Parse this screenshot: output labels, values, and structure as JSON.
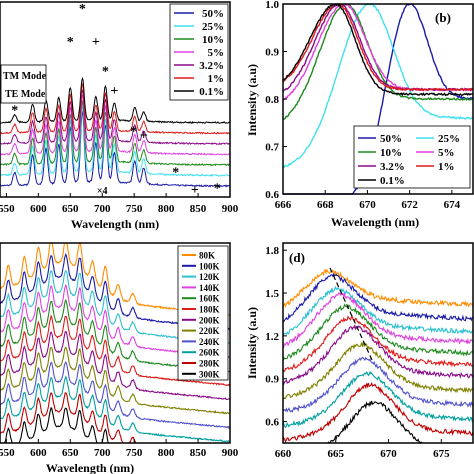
{
  "chart_data": [
    {
      "id": "a",
      "type": "line",
      "panel_label": "",
      "xlabel": "Wavelength (nm)",
      "ylabel": "",
      "xlim": [
        540,
        900
      ],
      "ylim": [
        0,
        1
      ],
      "x_ticks": [
        "550",
        "600",
        "650",
        "700",
        "750",
        "800",
        "850",
        "900"
      ],
      "x_tick_values": [
        550,
        600,
        650,
        700,
        750,
        800,
        850,
        900
      ],
      "legend_position": "top-right",
      "series": [
        {
          "name": "50%",
          "color": "#1a1aa8",
          "offset": 0.1
        },
        {
          "name": "25%",
          "color": "#40e0f0",
          "offset": 0.21
        },
        {
          "name": "10%",
          "color": "#1e8a1e",
          "offset": 0.32
        },
        {
          "name": "5%",
          "color": "#e040e0",
          "offset": 0.43
        },
        {
          "name": "3.2%",
          "color": "#8a0a8a",
          "offset": 0.54
        },
        {
          "name": "1%",
          "color": "#e01a1a",
          "offset": 0.65
        },
        {
          "name": "0.1%",
          "color": "#000000",
          "offset": 0.76
        }
      ],
      "peaks": [
        {
          "x": 563,
          "h": 0.18
        },
        {
          "x": 591,
          "h": 0.42
        },
        {
          "x": 612,
          "h": 0.5
        },
        {
          "x": 632,
          "h": 0.55
        },
        {
          "x": 650,
          "h": 0.78
        },
        {
          "x": 669,
          "h": 1.0
        },
        {
          "x": 690,
          "h": 0.55
        },
        {
          "x": 705,
          "h": 0.8
        },
        {
          "x": 719,
          "h": 0.42
        },
        {
          "x": 751,
          "h": 0.32
        },
        {
          "x": 765,
          "h": 0.22
        }
      ],
      "annotations": [
        {
          "text": "*",
          "x": 563,
          "y": 0.45
        },
        {
          "text": "*",
          "x": 591,
          "y": 0.64
        },
        {
          "text": "*",
          "x": 650,
          "y": 0.8
        },
        {
          "text": "*",
          "x": 669,
          "y": 0.97
        },
        {
          "text": "+",
          "x": 690,
          "y": 0.8
        },
        {
          "text": "*",
          "x": 705,
          "y": 0.65
        },
        {
          "text": "+",
          "x": 719,
          "y": 0.55
        },
        {
          "text": "*",
          "x": 749,
          "y": 0.34
        },
        {
          "text": "+",
          "x": 765,
          "y": 0.32
        },
        {
          "text": "*",
          "x": 815,
          "y": 0.13
        },
        {
          "text": "+",
          "x": 845,
          "y": 0.04
        },
        {
          "text": "*",
          "x": 880,
          "y": 0.05
        },
        {
          "text": "×4",
          "x": 700,
          "y": 0.04
        }
      ],
      "mode_labels": [
        "TM Mode",
        "TE Mode"
      ]
    },
    {
      "id": "b",
      "type": "line",
      "panel_label": "(b)",
      "xlabel": "Wavelength (nm)",
      "ylabel": "Intensity (a.u)",
      "xlim": [
        666,
        675
      ],
      "ylim": [
        0.6,
        1.0
      ],
      "x_ticks": [
        "666",
        "668",
        "670",
        "672",
        "674"
      ],
      "x_tick_values": [
        666,
        668,
        670,
        672,
        674
      ],
      "y_ticks": [
        "0.6",
        "0.7",
        "0.8",
        "0.9",
        "1.0"
      ],
      "y_tick_values": [
        0.6,
        0.7,
        0.8,
        0.9,
        1.0
      ],
      "legend_position": "bottom-right",
      "series": [
        {
          "name": "50%",
          "color": "#1a1aa8",
          "peak": 672.0,
          "width": 1.2,
          "base": 0.58,
          "tail": 0.8
        },
        {
          "name": "25%",
          "color": "#40e0f0",
          "peak": 670.1,
          "width": 1.6,
          "base": 0.65,
          "tail": 0.76
        },
        {
          "name": "10%",
          "color": "#1e8a1e",
          "peak": 669.0,
          "width": 1.4,
          "base": 0.74,
          "tail": 0.8
        },
        {
          "name": "5%",
          "color": "#e040e0",
          "peak": 668.9,
          "width": 1.4,
          "base": 0.78,
          "tail": 0.82
        },
        {
          "name": "3.2%",
          "color": "#8a0a8a",
          "peak": 668.7,
          "width": 1.3,
          "base": 0.8,
          "tail": 0.82
        },
        {
          "name": "1%",
          "color": "#e01a1a",
          "peak": 668.6,
          "width": 1.3,
          "base": 0.82,
          "tail": 0.82
        },
        {
          "name": "0.1%",
          "color": "#000000",
          "peak": 668.5,
          "width": 1.3,
          "base": 0.82,
          "tail": 0.81
        }
      ]
    },
    {
      "id": "c",
      "type": "line",
      "panel_label": "",
      "xlabel": "Wavelength (nm)",
      "ylabel": "",
      "xlim": [
        540,
        900
      ],
      "ylim": [
        0,
        1
      ],
      "x_ticks": [
        "550",
        "600",
        "650",
        "700",
        "750",
        "800",
        "850",
        "900"
      ],
      "x_tick_values": [
        550,
        600,
        650,
        700,
        750,
        800,
        850,
        900
      ],
      "legend_position": "right",
      "series": [
        {
          "name": "80K",
          "color": "#ff8c00"
        },
        {
          "name": "100K",
          "color": "#1a1aa8"
        },
        {
          "name": "120K",
          "color": "#2cc0d0"
        },
        {
          "name": "140K",
          "color": "#e040e0"
        },
        {
          "name": "160K",
          "color": "#1e8a1e"
        },
        {
          "name": "180K",
          "color": "#e01a1a"
        },
        {
          "name": "200K",
          "color": "#8a0a8a"
        },
        {
          "name": "220K",
          "color": "#808000"
        },
        {
          "name": "240K",
          "color": "#5050d0"
        },
        {
          "name": "260K",
          "color": "#00a0a0"
        },
        {
          "name": "280K",
          "color": "#c00000"
        },
        {
          "name": "300K",
          "color": "#000000"
        }
      ],
      "peaks": [
        {
          "x": 553,
          "h": 0.62
        },
        {
          "x": 578,
          "h": 0.68
        },
        {
          "x": 600,
          "h": 0.72
        },
        {
          "x": 620,
          "h": 0.7
        },
        {
          "x": 643,
          "h": 0.66
        },
        {
          "x": 665,
          "h": 0.78
        },
        {
          "x": 685,
          "h": 0.55
        },
        {
          "x": 705,
          "h": 0.7
        },
        {
          "x": 725,
          "h": 0.4
        },
        {
          "x": 748,
          "h": 0.28
        }
      ]
    },
    {
      "id": "d",
      "type": "line",
      "panel_label": "(d)",
      "xlabel": "",
      "ylabel": "Intensity (a.u)",
      "xlim": [
        660,
        678
      ],
      "ylim": [
        0.45,
        1.85
      ],
      "x_ticks": [
        "660",
        "665",
        "670",
        "675"
      ],
      "x_tick_values": [
        660,
        665,
        670,
        675
      ],
      "y_ticks": [
        "0.6",
        "0.9",
        "1.2",
        "1.5",
        "1.8"
      ],
      "y_tick_values": [
        0.6,
        0.9,
        1.2,
        1.5,
        1.8
      ],
      "series": [
        {
          "color": "#ff8c00",
          "offset": 1.62,
          "peak": 664.2,
          "amp": 0.18
        },
        {
          "color": "#1a1aa8",
          "offset": 1.52,
          "peak": 664.6,
          "amp": 0.25
        },
        {
          "color": "#2cc0d0",
          "offset": 1.43,
          "peak": 665.0,
          "amp": 0.25
        },
        {
          "color": "#e040e0",
          "offset": 1.36,
          "peak": 665.4,
          "amp": 0.28
        },
        {
          "color": "#1e8a1e",
          "offset": 1.28,
          "peak": 665.9,
          "amp": 0.28
        },
        {
          "color": "#e01a1a",
          "offset": 1.2,
          "peak": 666.3,
          "amp": 0.28
        },
        {
          "color": "#8a0a8a",
          "offset": 1.12,
          "peak": 666.8,
          "amp": 0.3
        },
        {
          "color": "#808000",
          "offset": 1.02,
          "peak": 667.3,
          "amp": 0.28
        },
        {
          "color": "#5050d0",
          "offset": 0.92,
          "peak": 667.6,
          "amp": 0.28
        },
        {
          "color": "#00a0a0",
          "offset": 0.82,
          "peak": 667.9,
          "amp": 0.28
        },
        {
          "color": "#c00000",
          "offset": 0.72,
          "peak": 668.2,
          "amp": 0.3
        },
        {
          "color": "#000000",
          "offset": 0.6,
          "peak": 668.6,
          "amp": 0.3
        }
      ]
    }
  ]
}
